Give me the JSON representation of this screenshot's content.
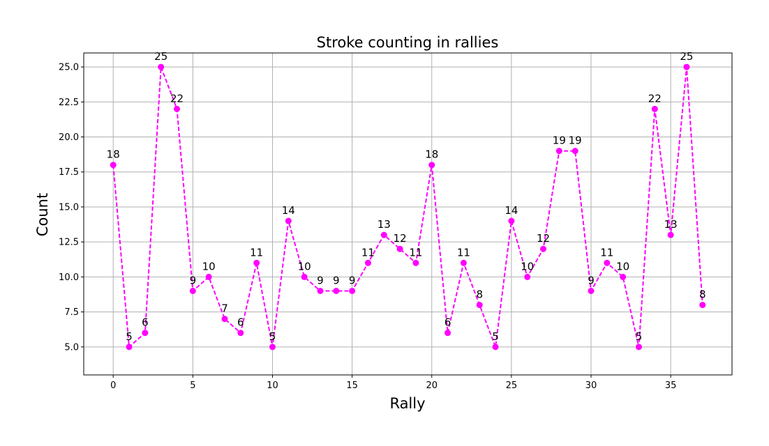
{
  "chart_data": {
    "type": "line",
    "title": "Stroke counting in rallies",
    "xlabel": "Rally",
    "ylabel": "Count",
    "x": [
      0,
      1,
      2,
      3,
      4,
      5,
      6,
      7,
      8,
      9,
      10,
      11,
      12,
      13,
      14,
      15,
      16,
      17,
      18,
      19,
      20,
      21,
      22,
      23,
      24,
      25,
      26,
      27,
      28,
      29,
      30,
      31,
      32,
      33,
      34,
      35,
      36,
      37
    ],
    "series": [
      {
        "values": [
          18,
          5,
          6,
          25,
          22,
          9,
          10,
          7,
          6,
          11,
          5,
          14,
          10,
          9,
          9,
          9,
          11,
          13,
          12,
          11,
          18,
          6,
          11,
          8,
          5,
          14,
          10,
          12,
          19,
          19,
          9,
          11,
          10,
          5,
          22,
          13,
          25,
          8
        ],
        "color": "#ff00ff",
        "line_style": "dashed",
        "marker": "circle"
      }
    ],
    "xlim": [
      -1.85,
      38.85
    ],
    "ylim": [
      3.0,
      26.0
    ],
    "xticks": [
      0,
      5,
      10,
      15,
      20,
      25,
      30,
      35
    ],
    "yticks": [
      5.0,
      7.5,
      10.0,
      12.5,
      15.0,
      17.5,
      20.0,
      22.5,
      25.0
    ],
    "xtick_labels": [
      "0",
      "5",
      "10",
      "15",
      "20",
      "25",
      "30",
      "35"
    ],
    "ytick_labels": [
      "5.0",
      "7.5",
      "10.0",
      "12.5",
      "15.0",
      "17.5",
      "20.0",
      "22.5",
      "25.0"
    ],
    "data_labels": [
      "18",
      "5",
      "6",
      "25",
      "22",
      "9",
      "10",
      "7",
      "6",
      "11",
      "5",
      "14",
      "10",
      "9",
      "9",
      "9",
      "11",
      "13",
      "12",
      "11",
      "18",
      "6",
      "11",
      "8",
      "5",
      "14",
      "10",
      "12",
      "19",
      "19",
      "9",
      "11",
      "10",
      "5",
      "22",
      "13",
      "25",
      "8"
    ],
    "grid": true,
    "legend": "none"
  }
}
